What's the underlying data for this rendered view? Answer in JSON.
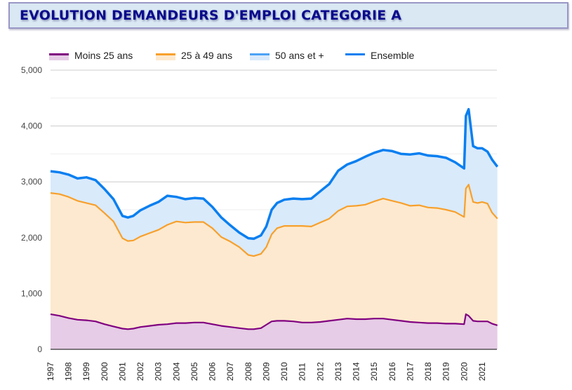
{
  "header": {
    "title": "EVOLUTION DEMANDEURS D'EMPLOI CATEGORIE A"
  },
  "chart_data": {
    "type": "area",
    "stacked": true,
    "title": "EVOLUTION DEMANDEURS D'EMPLOI CATEGORIE A",
    "xlabel": "",
    "ylabel": "",
    "ylim": [
      0,
      5000
    ],
    "y_ticks": [
      0,
      1000,
      2000,
      3000,
      4000,
      5000
    ],
    "y_tick_labels": [
      "0",
      "1,000",
      "2,000",
      "3,000",
      "4,000",
      "5,000"
    ],
    "y_minor_gridlines": [
      500,
      1500,
      2500,
      3500,
      4500
    ],
    "xlim": [
      1997,
      2021.85
    ],
    "x_ticks": [
      1997,
      1998,
      1999,
      2000,
      2001,
      2002,
      2003,
      2004,
      2005,
      2006,
      2007,
      2008,
      2009,
      2010,
      2011,
      2012,
      2013,
      2014,
      2015,
      2016,
      2017,
      2018,
      2019,
      2020,
      2021
    ],
    "x_tick_labels": [
      "1997",
      "1998",
      "1999",
      "2000",
      "2001",
      "2002",
      "2003",
      "2004",
      "2005",
      "2006",
      "2007",
      "2008",
      "2009",
      "2010",
      "2011",
      "2012",
      "2013",
      "2014",
      "2015",
      "2016",
      "2017",
      "2018",
      "2019",
      "2020",
      "2021"
    ],
    "grid": true,
    "legend_position": "top",
    "legend": [
      {
        "name": "Moins 25 ans",
        "line_color": "#800080",
        "fill_color": "#e6cce6"
      },
      {
        "name": "25 à 49 ans",
        "line_color": "#f7a02c",
        "fill_color": "#fde9cf"
      },
      {
        "name": "50 ans et +",
        "line_color": "#4da3f5",
        "fill_color": "#d9eafb"
      },
      {
        "name": "Ensemble",
        "line_color": "#0a7ff0",
        "fill_color": null
      }
    ],
    "x": [
      1997.0,
      1997.5,
      1998.0,
      1998.5,
      1999.0,
      1999.5,
      2000.0,
      2000.5,
      2001.0,
      2001.3,
      2001.6,
      2002.0,
      2002.5,
      2003.0,
      2003.5,
      2004.0,
      2004.5,
      2005.0,
      2005.5,
      2006.0,
      2006.5,
      2007.0,
      2007.5,
      2008.0,
      2008.3,
      2008.7,
      2009.0,
      2009.3,
      2009.6,
      2010.0,
      2010.5,
      2011.0,
      2011.5,
      2012.0,
      2012.5,
      2013.0,
      2013.5,
      2014.0,
      2014.5,
      2015.0,
      2015.5,
      2016.0,
      2016.5,
      2017.0,
      2017.5,
      2018.0,
      2018.5,
      2019.0,
      2019.5,
      2020.0,
      2020.1,
      2020.25,
      2020.5,
      2020.75,
      2021.0,
      2021.3,
      2021.55,
      2021.85
    ],
    "series": [
      {
        "name": "Moins 25 ans",
        "values": [
          630,
          600,
          560,
          530,
          520,
          500,
          450,
          410,
          370,
          360,
          370,
          400,
          420,
          440,
          450,
          470,
          470,
          480,
          480,
          450,
          420,
          400,
          380,
          360,
          360,
          380,
          440,
          500,
          510,
          510,
          500,
          480,
          480,
          490,
          510,
          530,
          550,
          540,
          540,
          550,
          550,
          530,
          510,
          490,
          480,
          470,
          470,
          460,
          460,
          450,
          630,
          600,
          510,
          500,
          500,
          500,
          460,
          430
        ]
      },
      {
        "name": "25 à 49 ans",
        "values": [
          2170,
          2180,
          2170,
          2130,
          2100,
          2080,
          1990,
          1880,
          1620,
          1580,
          1580,
          1620,
          1660,
          1700,
          1780,
          1820,
          1800,
          1800,
          1800,
          1720,
          1590,
          1530,
          1450,
          1330,
          1310,
          1330,
          1390,
          1560,
          1660,
          1700,
          1710,
          1730,
          1720,
          1780,
          1830,
          1950,
          2010,
          2030,
          2050,
          2100,
          2150,
          2130,
          2110,
          2080,
          2100,
          2070,
          2060,
          2040,
          2000,
          1920,
          2250,
          2350,
          2130,
          2120,
          2140,
          2110,
          1990,
          1910
        ]
      },
      {
        "name": "50 ans et +",
        "values": [
          390,
          390,
          400,
          400,
          460,
          450,
          430,
          400,
          400,
          420,
          440,
          470,
          490,
          500,
          520,
          440,
          420,
          430,
          420,
          380,
          350,
          290,
          260,
          300,
          310,
          330,
          370,
          440,
          450,
          470,
          490,
          480,
          500,
          560,
          620,
          720,
          750,
          800,
          860,
          870,
          870,
          890,
          880,
          920,
          930,
          930,
          930,
          930,
          890,
          870,
          1300,
          1350,
          1000,
          980,
          960,
          930,
          950,
          930
        ]
      },
      {
        "name": "Ensemble",
        "values": [
          3190,
          3170,
          3130,
          3060,
          3080,
          3030,
          2870,
          2690,
          2390,
          2360,
          2390,
          2490,
          2570,
          2640,
          2750,
          2730,
          2690,
          2710,
          2700,
          2550,
          2360,
          2220,
          2090,
          1990,
          1980,
          2040,
          2200,
          2500,
          2620,
          2680,
          2700,
          2690,
          2700,
          2830,
          2960,
          3200,
          3310,
          3370,
          3450,
          3520,
          3570,
          3550,
          3500,
          3490,
          3510,
          3470,
          3460,
          3430,
          3350,
          3240,
          4180,
          4300,
          3640,
          3600,
          3600,
          3540,
          3400,
          3270
        ]
      }
    ]
  }
}
